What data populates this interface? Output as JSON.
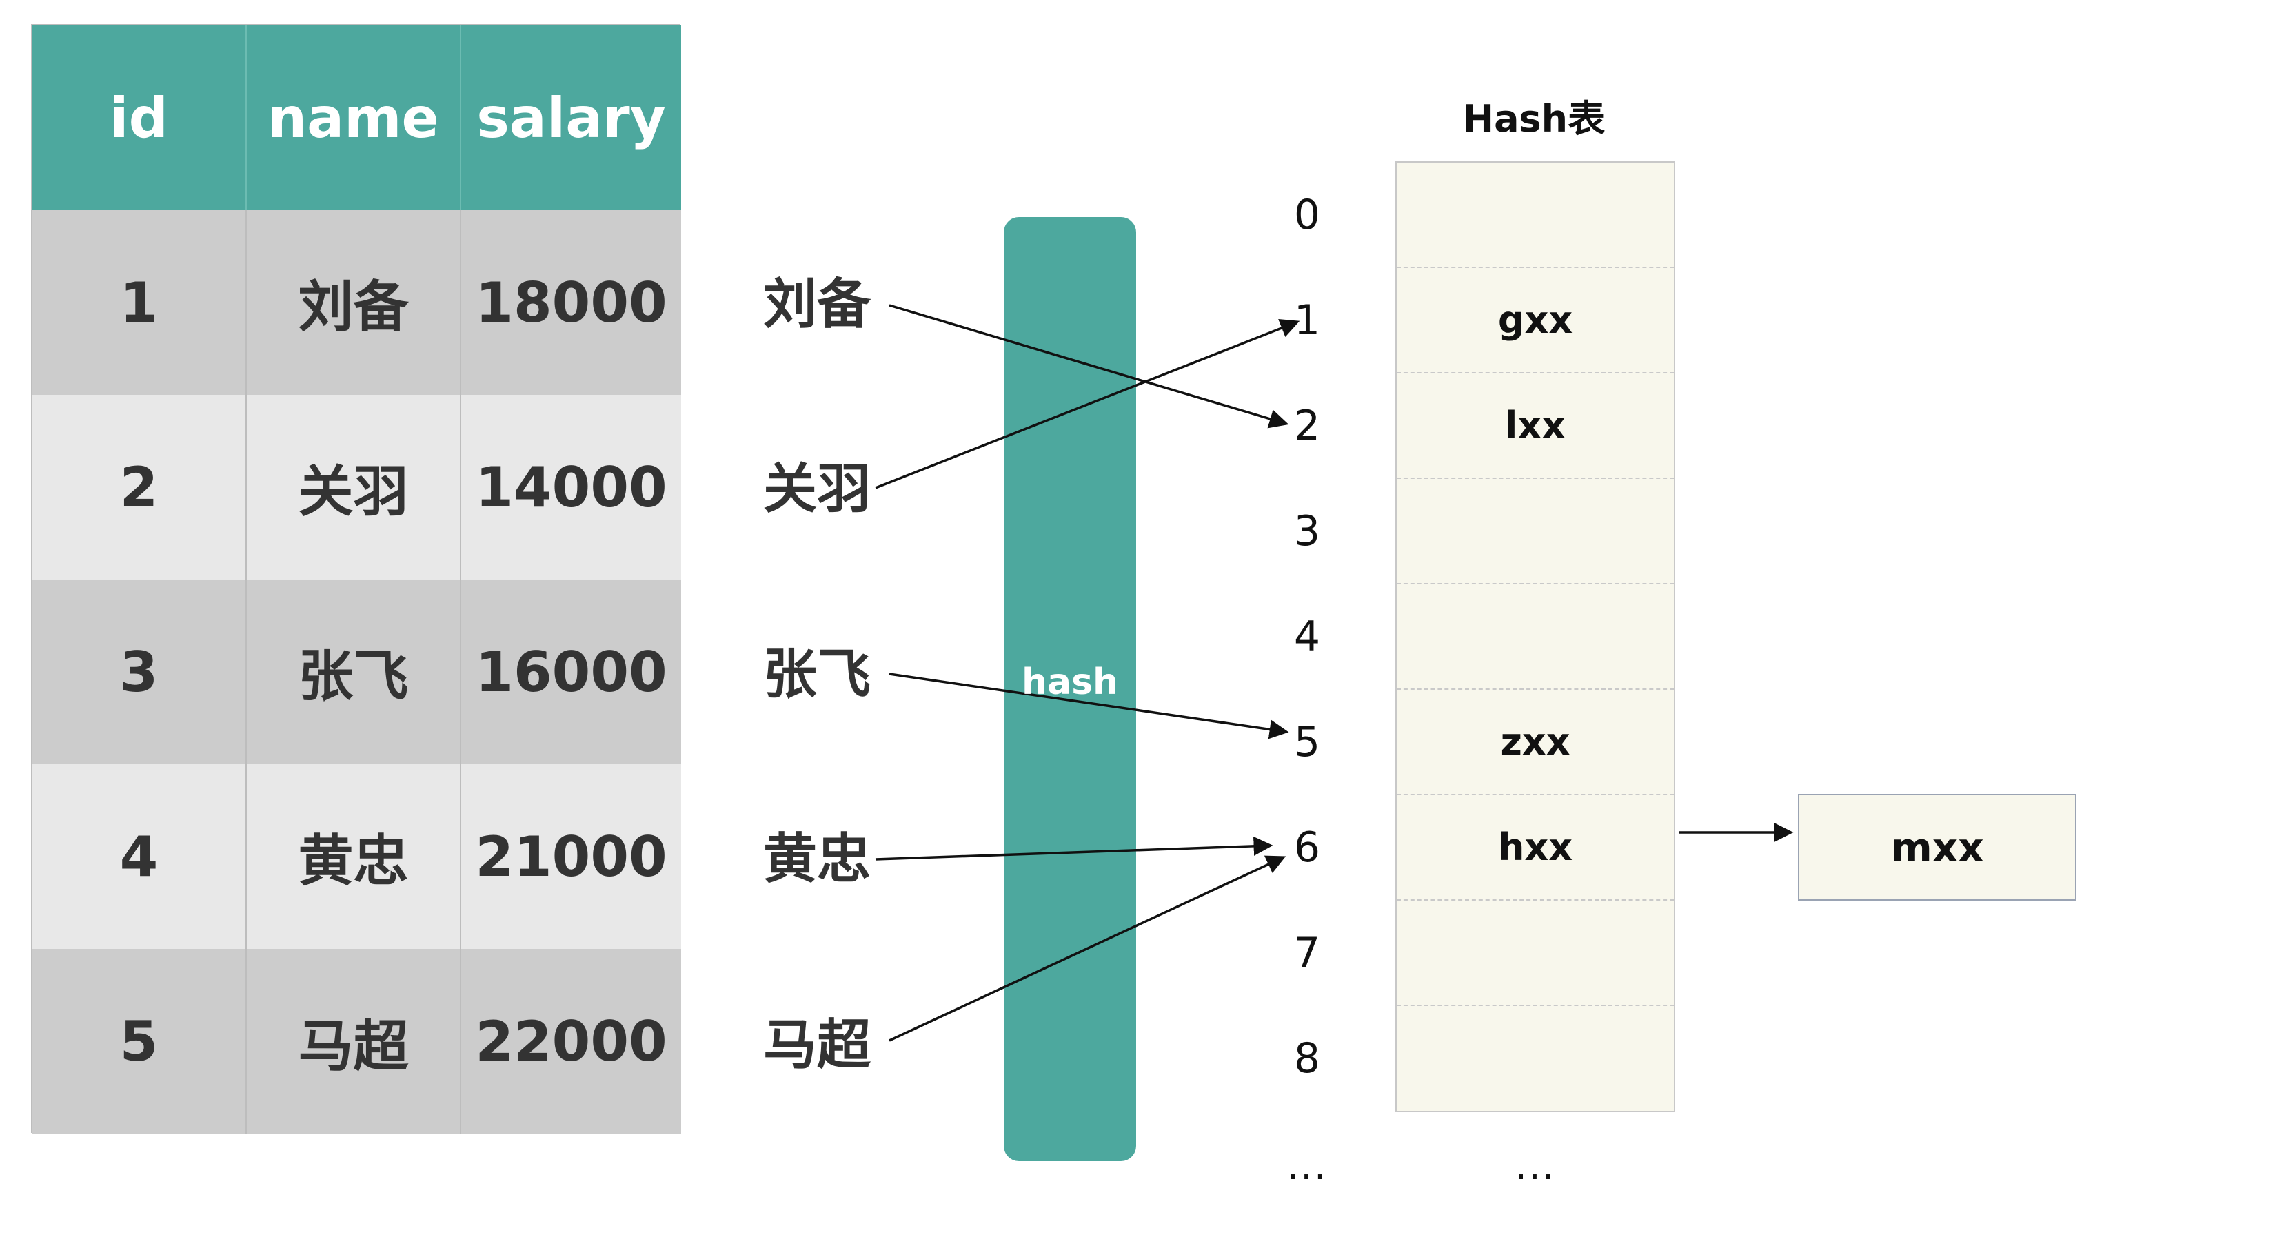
{
  "table": {
    "headers": [
      "id",
      "name",
      "salary"
    ],
    "rows": [
      [
        "1",
        "刘备",
        "18000"
      ],
      [
        "2",
        "关羽",
        "14000"
      ],
      [
        "3",
        "张飞",
        "16000"
      ],
      [
        "4",
        "黄忠",
        "21000"
      ],
      [
        "5",
        "马超",
        "22000"
      ]
    ]
  },
  "keys": [
    "刘备",
    "关羽",
    "张飞",
    "黄忠",
    "马超"
  ],
  "hash_label": "hash",
  "indices": [
    "0",
    "1",
    "2",
    "3",
    "4",
    "5",
    "6",
    "7",
    "8",
    "..."
  ],
  "hash_table": {
    "title": "Hash表",
    "slots": [
      "",
      "gxx",
      "lxx",
      "",
      "",
      "zxx",
      "hxx",
      "",
      ""
    ],
    "continuation": "...",
    "chain_node": "mxx"
  },
  "mappings": [
    {
      "key": "刘备",
      "slot": "2"
    },
    {
      "key": "关羽",
      "slot": "1"
    },
    {
      "key": "张飞",
      "slot": "5"
    },
    {
      "key": "黄忠",
      "slot": "6"
    },
    {
      "key": "马超",
      "slot": "6"
    }
  ],
  "colors": {
    "header_bg": "#4da89e",
    "hash_bar": "#4da89e",
    "row_dark": "#cccccc",
    "row_light": "#e8e8e8",
    "hash_table_bg": "#f8f7ec"
  }
}
